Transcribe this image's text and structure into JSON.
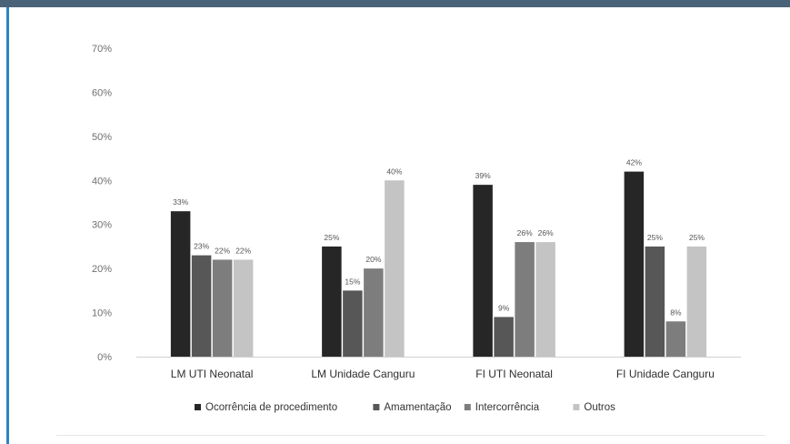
{
  "chart_data": {
    "type": "bar",
    "title": "",
    "xlabel": "",
    "ylabel": "",
    "categories": [
      "LM UTI Neonatal",
      "LM Unidade Canguru",
      "FI UTI Neonatal",
      "FI Unidade Canguru"
    ],
    "ylim": [
      0,
      70
    ],
    "yticks": [
      0,
      10,
      20,
      30,
      40,
      50,
      60,
      70
    ],
    "ytick_labels": [
      "0%",
      "10%",
      "20%",
      "30%",
      "40%",
      "50%",
      "60%",
      "70%"
    ],
    "grid": false,
    "legend_position": "bottom",
    "series": [
      {
        "name": "Ocorrência de procedimento",
        "color": "#262626",
        "values": [
          33,
          25,
          39,
          42
        ],
        "labels": [
          "33%",
          "25%",
          "39%",
          "42%"
        ]
      },
      {
        "name": "Amamentação",
        "color": "#575757",
        "values": [
          23,
          15,
          9,
          25
        ],
        "labels": [
          "23%",
          "15%",
          "9%",
          "25%"
        ]
      },
      {
        "name": "Intercorrência",
        "color": "#7d7d7d",
        "values": [
          22,
          20,
          26,
          8
        ],
        "labels": [
          "22%",
          "20%",
          "26%",
          "8%"
        ]
      },
      {
        "name": "Outros",
        "color": "#c4c4c4",
        "values": [
          22,
          40,
          26,
          25
        ],
        "labels": [
          "22%",
          "40%",
          "26%",
          "25%"
        ]
      }
    ]
  }
}
